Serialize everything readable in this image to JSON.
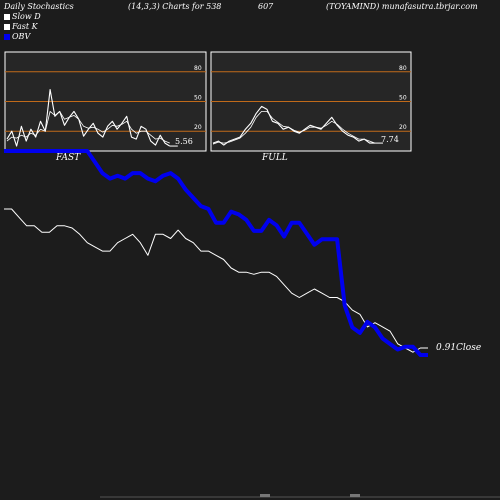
{
  "header": {
    "left": "Daily Stochastics",
    "params": "(14,3,3) Charts for 538",
    "code": "607",
    "right": "(TOYAMIND) munafasutra.tbrjar.com"
  },
  "legend": [
    {
      "label": "Slow  D",
      "color": "#ffffff"
    },
    {
      "label": "Fast K",
      "color": "#ffffff"
    },
    {
      "label": "OBV",
      "color": "#0000ee"
    }
  ],
  "colors": {
    "background": "#1c1c1c",
    "panel_bg": "#262626",
    "level_line": "#c06a1a",
    "price_line": "#ffffff",
    "obv_line": "#0000ee"
  },
  "chart_data": [
    {
      "type": "line",
      "panel": "FAST",
      "title": "FAST",
      "ylim": [
        0,
        100
      ],
      "yticks": [
        20,
        50,
        80
      ],
      "series": [
        {
          "name": "Fast K",
          "values": [
            12,
            20,
            5,
            25,
            10,
            22,
            14,
            30,
            20,
            62,
            35,
            40,
            26,
            34,
            40,
            32,
            15,
            22,
            28,
            18,
            14,
            25,
            30,
            22,
            28,
            35,
            14,
            12,
            25,
            22,
            10,
            6,
            16,
            8,
            5
          ]
        },
        {
          "name": "Slow  D",
          "values": [
            10,
            14,
            13,
            16,
            14,
            18,
            16,
            22,
            20,
            40,
            36,
            40,
            32,
            34,
            36,
            32,
            25,
            23,
            24,
            22,
            19,
            22,
            26,
            25,
            27,
            30,
            22,
            18,
            20,
            20,
            16,
            12,
            13,
            10,
            8
          ]
        }
      ],
      "last_value": "5.56"
    },
    {
      "type": "line",
      "panel": "FULL",
      "title": "FULL",
      "ylim": [
        0,
        100
      ],
      "yticks": [
        20,
        50,
        80
      ],
      "series": [
        {
          "name": "Fast K",
          "values": [
            8,
            10,
            6,
            10,
            12,
            14,
            22,
            28,
            38,
            45,
            42,
            30,
            28,
            22,
            24,
            20,
            18,
            22,
            26,
            24,
            22,
            28,
            34,
            26,
            20,
            16,
            14,
            10,
            12,
            8,
            8
          ]
        },
        {
          "name": "Slow  D",
          "values": [
            7,
            9,
            8,
            9,
            11,
            13,
            18,
            24,
            34,
            40,
            40,
            33,
            29,
            25,
            24,
            21,
            19,
            21,
            24,
            24,
            23,
            26,
            30,
            27,
            22,
            18,
            15,
            12,
            12,
            10,
            8
          ]
        }
      ],
      "last_value": "7.74"
    },
    {
      "type": "line",
      "panel": "PRICE",
      "series": [
        {
          "name": "Close",
          "values": [
            100,
            100,
            96,
            92,
            92,
            89,
            89,
            92,
            92,
            91,
            88,
            84,
            82,
            80,
            80,
            84,
            86,
            88,
            84,
            78,
            88,
            88,
            86,
            90,
            86,
            84,
            80,
            80,
            78,
            76,
            72,
            70,
            70,
            69,
            70,
            70,
            68,
            64,
            60,
            58,
            60,
            62,
            60,
            58,
            58,
            56,
            52,
            50,
            44,
            46,
            44,
            42,
            36,
            34,
            32,
            34,
            34
          ]
        }
      ],
      "last_label": "0.91",
      "last_suffix": "Close"
    },
    {
      "type": "line",
      "panel": "OBV",
      "series": [
        {
          "name": "OBV",
          "values": [
            102,
            102,
            102,
            102,
            102,
            102,
            102,
            102,
            102,
            102,
            102,
            102,
            98,
            94,
            92,
            93,
            92,
            94,
            94,
            92,
            91,
            93,
            94,
            92,
            88,
            85,
            82,
            81,
            76,
            76,
            80,
            79,
            77,
            73,
            73,
            77,
            75,
            71,
            76,
            76,
            72,
            68,
            70,
            70,
            70,
            46,
            38,
            36,
            40,
            38,
            34,
            32,
            30,
            31,
            31,
            28,
            28
          ]
        }
      ]
    }
  ]
}
